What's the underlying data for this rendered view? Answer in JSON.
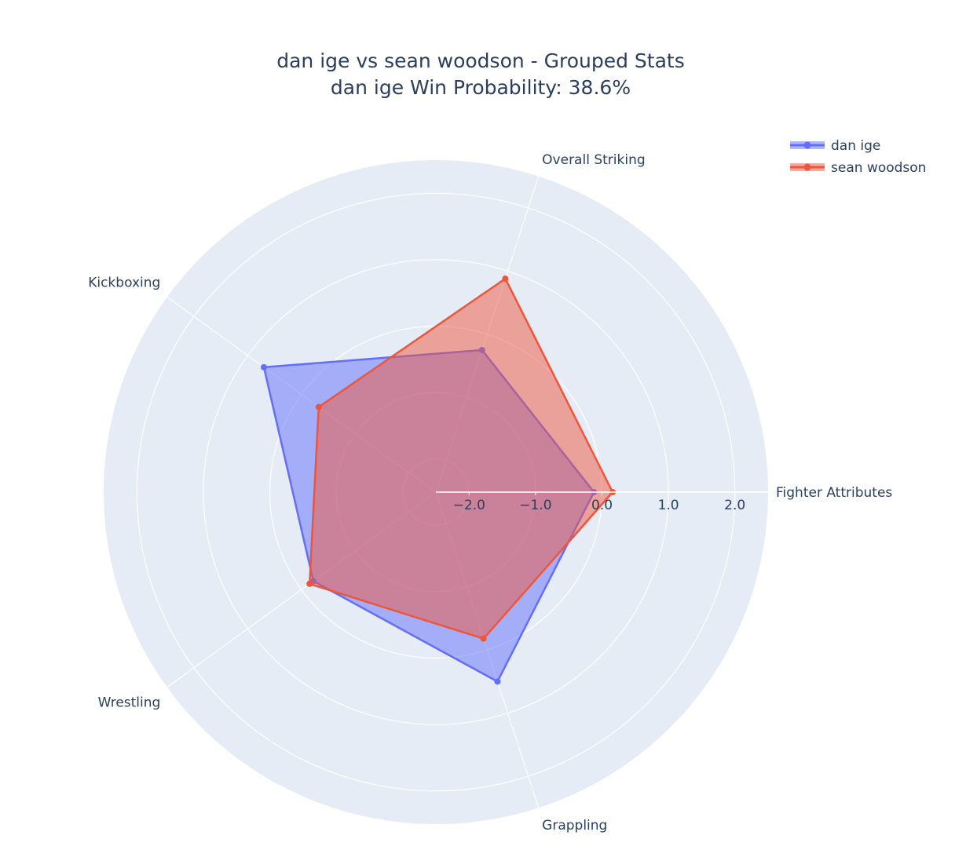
{
  "chart_data": {
    "type": "radar",
    "title": "dan ige vs sean woodson - Grouped Stats",
    "subtitle": "dan ige Win Probability: 38.6%",
    "categories": [
      "Fighter Attributes",
      "Overall Striking",
      "Kickboxing",
      "Wrestling",
      "Grappling"
    ],
    "rrange": [
      -2.5,
      2.5
    ],
    "rticks": [
      -2.0,
      -1.0,
      0.0,
      1.0,
      2.0
    ],
    "rtick_labels": [
      "−2.0",
      "−1.0",
      "0.0",
      "1.0",
      "2.0"
    ],
    "series": [
      {
        "name": "dan ige",
        "color": "#636efa",
        "values": [
          -0.12,
          -0.25,
          0.7,
          -0.22,
          0.5
        ]
      },
      {
        "name": "sean woodson",
        "color": "#ef553b",
        "values": [
          0.16,
          0.88,
          -0.32,
          -0.15,
          -0.18
        ]
      }
    ],
    "legend_position": "top-right"
  }
}
